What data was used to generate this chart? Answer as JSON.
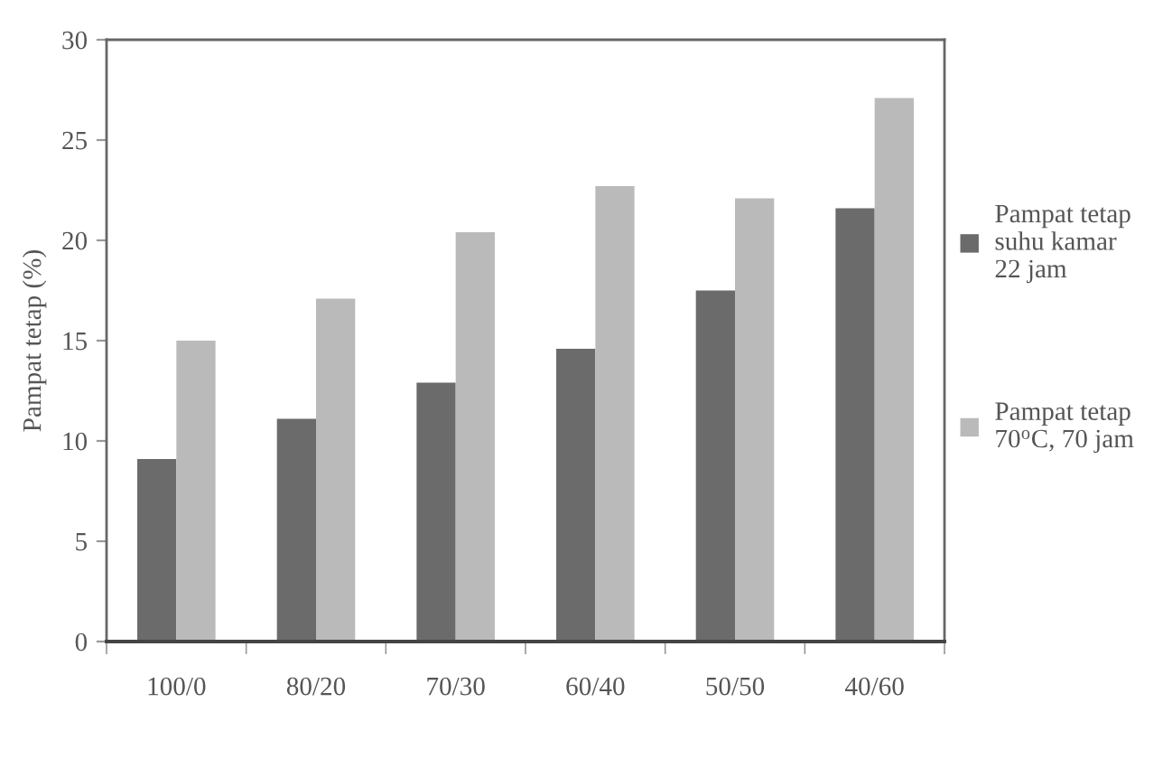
{
  "chart_data": {
    "type": "bar",
    "ylabel": "Pampat tetap (%)",
    "categories": [
      "100/0",
      "80/20",
      "70/30",
      "60/40",
      "50/50",
      "40/60"
    ],
    "series": [
      {
        "name": "Pampat tetap\nsuhu kamar\n22 jam",
        "color": "#6b6b6b",
        "values": [
          9.1,
          11.1,
          12.9,
          14.6,
          17.5,
          21.6
        ]
      },
      {
        "name": "Pampat tetap\n70$^{o}$C, 70 jam",
        "color": "#bababa",
        "values": [
          15.0,
          17.1,
          20.4,
          22.7,
          22.1,
          27.1
        ]
      }
    ],
    "ylim": [
      0,
      30
    ],
    "yticks": [
      0,
      5,
      10,
      15,
      20,
      25,
      30
    ],
    "grid": false,
    "legend": "right"
  }
}
